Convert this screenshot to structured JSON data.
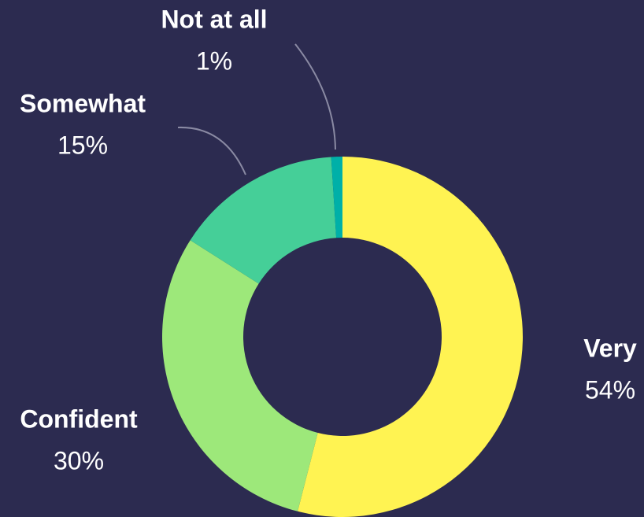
{
  "chart_data": {
    "type": "donut",
    "categories": [
      "Very",
      "Confident",
      "Somewhat",
      "Not at all"
    ],
    "values": [
      54,
      30,
      15,
      1
    ],
    "value_labels": [
      "54%",
      "30%",
      "15%",
      "1%"
    ],
    "colors": [
      "#fff352",
      "#9de87a",
      "#45cf98",
      "#00b0a8"
    ]
  }
}
